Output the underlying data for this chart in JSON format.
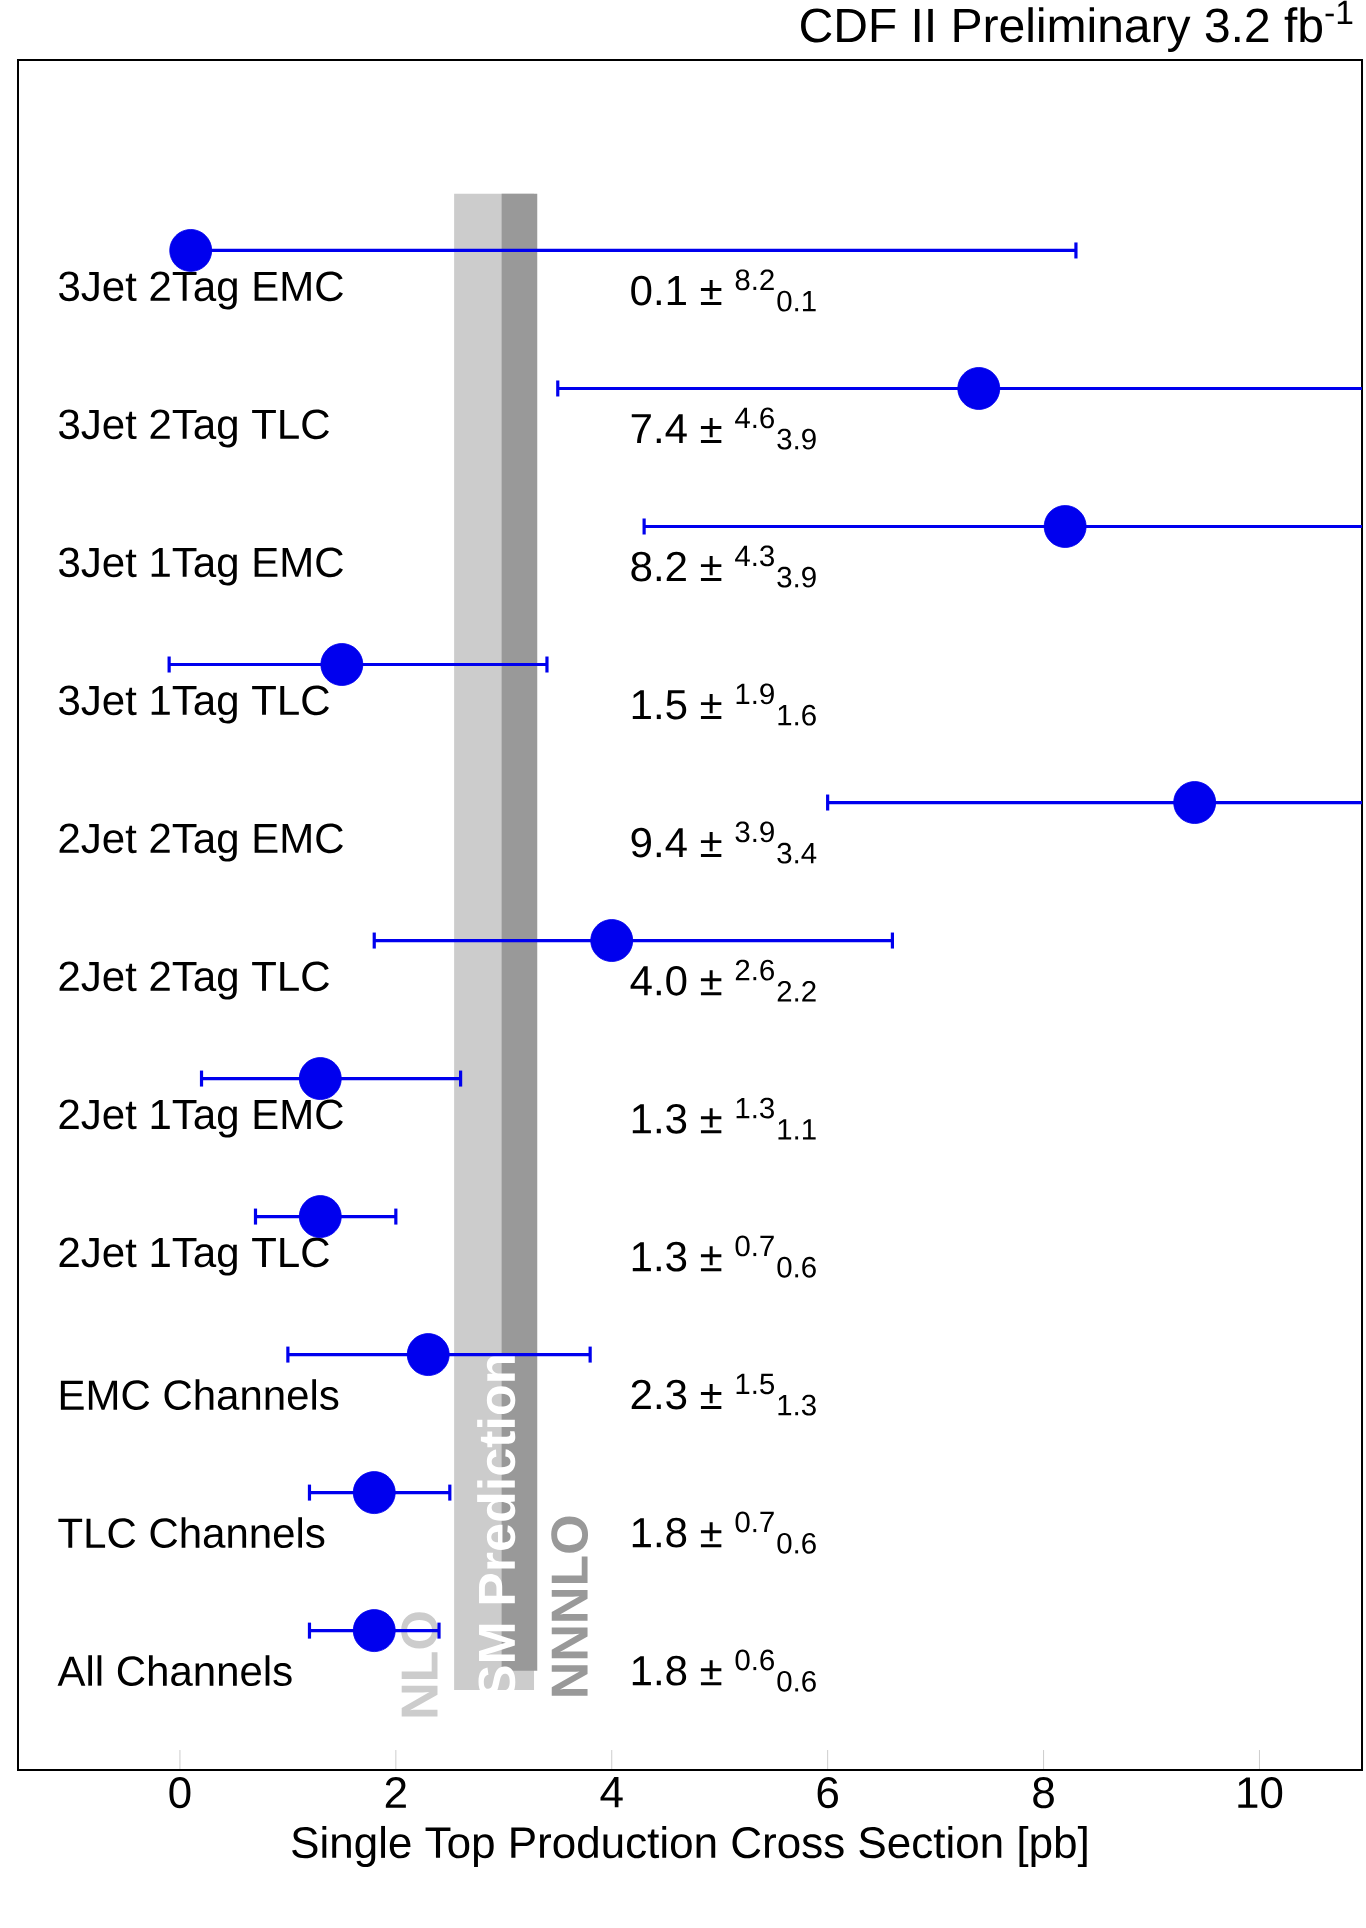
{
  "chart_data": {
    "type": "scatter",
    "orientation": "horizontal",
    "title": "CDF II Preliminary 3.2 fb$^{-1}$",
    "xlabel": "Single Top Production Cross Section [pb]",
    "categories": [
      "3Jet 2Tag EMC",
      "3Jet 2Tag TLC",
      "3Jet 1Tag EMC",
      "3Jet 1Tag TLC",
      "2Jet 2Tag EMC",
      "2Jet 2Tag TLC",
      "2Jet 1Tag EMC",
      "2Jet 1Tag TLC",
      "EMC Channels",
      "TLC Channels",
      "All Channels"
    ],
    "values": [
      0.1,
      7.4,
      8.2,
      1.5,
      9.4,
      4.0,
      1.3,
      1.3,
      2.3,
      1.8,
      1.8
    ],
    "errors": [
      [
        0.1,
        8.3
      ],
      [
        3.5,
        12.0
      ],
      [
        4.3,
        12.5
      ],
      [
        -0.1,
        3.4
      ],
      [
        6.0,
        13.3
      ],
      [
        1.8,
        6.6
      ],
      [
        0.2,
        2.6
      ],
      [
        0.7,
        2.0
      ],
      [
        1.0,
        3.8
      ],
      [
        1.2,
        2.5
      ],
      [
        1.2,
        2.4
      ]
    ],
    "annotations": [
      "SM Prediction",
      "0.1 ± $^{8.2}$$_{0.1}$",
      "7.4 ± $^{4.6}$$_{3.9}$",
      "8.2 ± $^{4.3}$$_{3.9}$",
      "1.5 ± $^{1.9}$$_{1.6}$",
      "9.4 ± $^{3.9}$$_{3.4}$",
      "4.0 ± $^{2.6}$$_{2.2}$",
      "1.3 ± $^{1.3}$$_{1.1}$",
      "1.3 ± $^{0.7}$$_{0.6}$",
      "2.3 ± $^{1.5}$$_{1.3}$",
      "1.8 ± $^{0.7}$$_{0.6}$",
      "1.8 ± $^{0.6}$$_{0.6}$"
    ],
    "color": "#0000ee",
    "marker": "circle",
    "xlim": [
      -1.5,
      10.95
    ],
    "xticks": [
      0,
      2,
      4,
      6,
      8,
      10
    ],
    "bands": [
      {
        "axis": "x",
        "from": 2.54,
        "to": 3.28,
        "label": "NLO",
        "color": "#cccccc"
      },
      {
        "axis": "x",
        "from": 2.98,
        "to": 3.31,
        "label": "NNNLO",
        "color": "#999999"
      }
    ],
    "grid": false
  }
}
